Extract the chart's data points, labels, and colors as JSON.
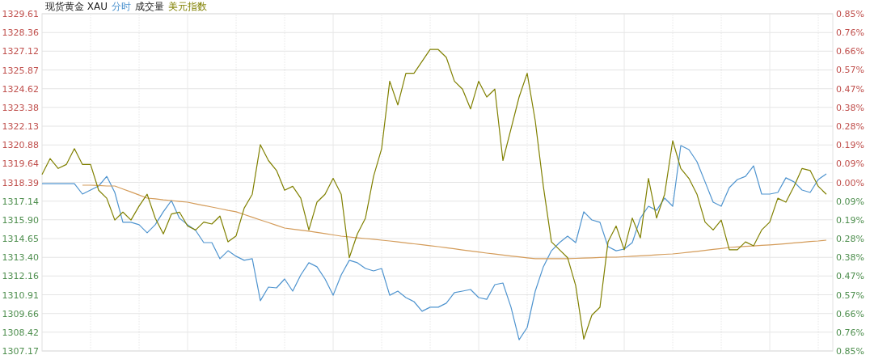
{
  "chart_data": {
    "type": "line",
    "title": "现货黄金 XAU",
    "annotations": [
      "成交量"
    ],
    "categories": [
      null,
      null,
      null,
      null,
      null,
      null,
      null,
      null,
      null,
      null,
      null,
      null,
      null,
      null,
      null,
      null,
      null,
      null,
      null,
      null,
      null,
      null,
      null,
      null,
      null,
      null,
      null,
      null,
      null,
      null,
      null,
      null,
      null,
      null,
      null,
      null,
      null,
      null,
      null,
      null,
      null,
      null,
      null,
      null,
      null,
      null,
      null,
      null,
      null,
      null,
      null,
      null,
      null,
      null,
      null,
      null,
      null,
      null,
      null,
      null,
      null,
      null,
      null,
      null,
      null,
      null,
      null,
      null,
      null,
      null,
      null,
      null,
      null,
      null,
      null,
      null,
      null,
      null,
      null,
      null,
      null,
      null,
      null,
      null,
      null,
      null,
      null,
      null,
      null,
      null,
      null,
      null,
      null,
      null,
      null,
      null,
      null,
      null
    ],
    "ylim": [
      1307.17,
      1329.61
    ],
    "yticks": [
      1307.17,
      1308.42,
      1309.66,
      1310.91,
      1312.16,
      {
        "value": 1313.4,
        "label": "1313.40"
      },
      1314.65,
      {
        "value": 1315.9,
        "label": "1315.90"
      },
      1317.14,
      1318.39,
      1319.64,
      1320.88,
      1322.13,
      1323.38,
      1324.62,
      1325.87,
      1327.12,
      1328.36,
      1329.61
    ],
    "y2lim": [
      -0.85,
      0.85
    ],
    "y2ticks": [
      {
        "value": -0.85,
        "label": "0.85%"
      },
      {
        "value": -0.7556,
        "label": "0.76%"
      },
      {
        "value": -0.6611,
        "label": "0.66%"
      },
      {
        "value": -0.5667,
        "label": "0.57%"
      },
      {
        "value": -0.4722,
        "label": "0.47%"
      },
      {
        "value": -0.3778,
        "label": "0.38%"
      },
      {
        "value": -0.2833,
        "label": "0.28%"
      },
      {
        "value": -0.1889,
        "label": "0.19%"
      },
      {
        "value": -0.0944,
        "label": "0.09%"
      },
      {
        "value": 0,
        "label": "0.00%"
      },
      {
        "value": 0.0944,
        "label": "0.09%"
      },
      {
        "value": 0.1889,
        "label": "0.19%"
      },
      {
        "value": 0.2833,
        "label": "0.28%"
      },
      {
        "value": 0.3778,
        "label": "0.38%"
      },
      {
        "value": 0.4722,
        "label": "0.47%"
      },
      {
        "value": 0.5667,
        "label": "0.57%"
      },
      {
        "value": 0.6611,
        "label": "0.66%"
      },
      {
        "value": 0.7556,
        "label": "0.76%"
      },
      {
        "value": 0.85,
        "label": "0.85%"
      }
    ],
    "grid": true,
    "legend": "top left",
    "series": [
      {
        "name": "分时",
        "color": "#4f94cf",
        "values": [
          1318.3,
          1318.3,
          1318.3,
          1318.3,
          1318.3,
          1317.61,
          1317.88,
          1318.15,
          1318.79,
          1317.72,
          1315.73,
          1315.73,
          1315.57,
          1315.03,
          1315.57,
          1316.43,
          1317.18,
          1316.0,
          1315.57,
          1315.19,
          1314.38,
          1314.38,
          1313.31,
          1313.84,
          1313.47,
          1313.2,
          1313.31,
          1310.51,
          1311.42,
          1311.37,
          1311.96,
          1311.15,
          1312.23,
          1313.04,
          1312.77,
          1311.96,
          1310.88,
          1312.23,
          1313.2,
          1313.04,
          1312.66,
          1312.5,
          1312.66,
          1310.88,
          1311.15,
          1310.72,
          1310.45,
          1309.81,
          1310.08,
          1310.08,
          1310.35,
          1311.05,
          1311.15,
          1311.26,
          1310.72,
          1310.61,
          1311.58,
          1311.69,
          1310.08,
          1307.92,
          1308.73,
          1311.15,
          1312.77,
          1313.84,
          1314.38,
          1314.81,
          1314.38,
          1316.43,
          1315.89,
          1315.73,
          1314.11,
          1313.84,
          1313.95,
          1314.38,
          1316.0,
          1316.8,
          1316.53,
          1317.34,
          1316.8,
          1320.84,
          1320.57,
          1319.76,
          1318.42,
          1317.07,
          1316.8,
          1318.04,
          1318.58,
          1318.79,
          1319.49,
          1317.61,
          1317.61,
          1317.72,
          1318.69,
          1318.42,
          1317.88,
          1317.72,
          1318.58,
          1318.96
        ]
      },
      {
        "color": "#d49c5a",
        "values": [
          null,
          null,
          null,
          null,
          null,
          1318.2,
          1318.2,
          1318.18,
          1318.15,
          1318.15,
          1317.95,
          1317.75,
          1317.55,
          1317.34,
          1317.29,
          1317.23,
          1317.18,
          1317.12,
          1317.07,
          1316.96,
          1316.85,
          1316.75,
          1316.64,
          1316.53,
          1316.43,
          1316.25,
          1316.07,
          1315.89,
          1315.71,
          1315.53,
          1315.35,
          1315.28,
          1315.21,
          1315.14,
          1315.06,
          1314.98,
          1314.89,
          1314.81,
          1314.76,
          1314.7,
          1314.65,
          1314.6,
          1314.54,
          1314.49,
          1314.43,
          1314.36,
          1314.3,
          1314.24,
          1314.17,
          1314.11,
          1314.04,
          1313.97,
          1313.89,
          1313.82,
          1313.75,
          1313.68,
          1313.62,
          1313.56,
          1313.49,
          1313.43,
          1313.37,
          1313.31,
          1313.31,
          1313.31,
          1313.31,
          1313.31,
          1313.33,
          1313.35,
          1313.37,
          1313.39,
          1313.41,
          1313.41,
          1313.44,
          1313.47,
          1313.5,
          1313.53,
          1313.57,
          1313.6,
          1313.63,
          1313.68,
          1313.74,
          1313.8,
          1313.86,
          1313.93,
          1313.99,
          1314.06,
          1314.09,
          1314.13,
          1314.16,
          1314.2,
          1314.23,
          1314.27,
          1314.31,
          1314.36,
          1314.4,
          1314.45,
          1314.49,
          1314.54
        ]
      },
      {
        "name": "美元指数",
        "color": "#808000",
        "axis": "y2",
        "values": [
          0.04,
          0.12,
          0.07,
          0.09,
          0.17,
          0.09,
          0.09,
          -0.04,
          -0.08,
          -0.19,
          -0.15,
          -0.19,
          -0.12,
          -0.06,
          -0.18,
          -0.26,
          -0.16,
          -0.15,
          -0.22,
          -0.24,
          -0.2,
          -0.21,
          -0.17,
          -0.3,
          -0.27,
          -0.13,
          -0.06,
          0.19,
          0.11,
          0.06,
          -0.04,
          -0.02,
          -0.08,
          -0.24,
          -0.1,
          -0.06,
          0.02,
          -0.06,
          -0.38,
          -0.26,
          -0.18,
          0.03,
          0.17,
          0.51,
          0.39,
          0.55,
          0.55,
          0.61,
          0.67,
          0.67,
          0.63,
          0.51,
          0.47,
          0.37,
          0.51,
          0.43,
          0.47,
          0.11,
          0.27,
          0.43,
          0.55,
          0.31,
          -0.02,
          -0.3,
          -0.34,
          -0.38,
          -0.52,
          -0.79,
          -0.67,
          -0.63,
          -0.3,
          -0.22,
          -0.34,
          -0.18,
          -0.28,
          0.02,
          -0.18,
          -0.06,
          0.21,
          0.07,
          0.02,
          -0.06,
          -0.2,
          -0.24,
          -0.19,
          -0.34,
          -0.34,
          -0.3,
          -0.32,
          -0.24,
          -0.2,
          -0.08,
          -0.1,
          -0.02,
          0.07,
          0.06,
          -0.02,
          -0.06
        ]
      }
    ]
  }
}
